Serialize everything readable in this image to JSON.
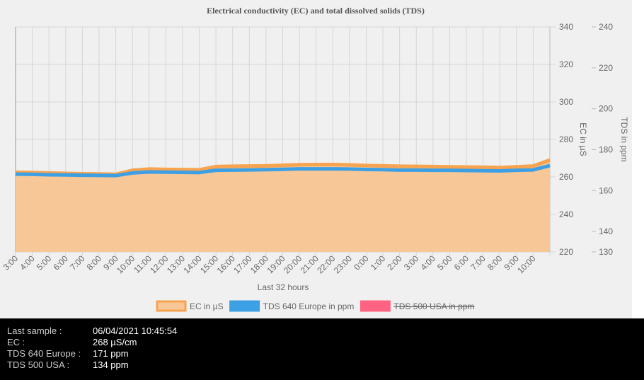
{
  "chart_data": {
    "type": "line",
    "title": "Electrical conductivity (EC) and total dissolved solids (TDS)",
    "x_label": "Last 32 hours",
    "y_label": "EC in µS",
    "y2_label": "TDS in ppm",
    "categories": [
      "3:00",
      "4:00",
      "5:00",
      "6:00",
      "7:00",
      "8:00",
      "9:00",
      "10:00",
      "11:00",
      "12:00",
      "13:00",
      "14:00",
      "15:00",
      "16:00",
      "17:00",
      "18:00",
      "19:00",
      "20:00",
      "21:00",
      "22:00",
      "23:00",
      "0:00",
      "1:00",
      "2:00",
      "3:00",
      "4:00",
      "5:00",
      "6:00",
      "7:00",
      "8:00",
      "9:00",
      "10:00",
      null
    ],
    "series": [
      {
        "name": "EC in µS",
        "color": "#f7a34f",
        "fill": "#f8c797",
        "values": [
          262.5,
          262.3,
          262.1,
          261.9,
          261.7,
          261.6,
          261.4,
          263.5,
          264.2,
          264,
          263.9,
          263.8,
          265.5,
          265.7,
          265.8,
          265.9,
          266.2,
          266.5,
          266.6,
          266.6,
          266.4,
          266.1,
          265.9,
          265.7,
          265.6,
          265.5,
          265.4,
          265.3,
          265.2,
          265,
          265.4,
          265.8,
          269
        ]
      },
      {
        "name": "TDS 640 Europe in ppm",
        "color": "#3ea0e4",
        "axis": "y2",
        "values": [
          168.0,
          167.9,
          167.7,
          167.6,
          167.5,
          167.4,
          167.3,
          168.6,
          169.1,
          169.0,
          168.9,
          168.8,
          169.9,
          170.0,
          170.1,
          170.2,
          170.4,
          170.6,
          170.6,
          170.6,
          170.5,
          170.3,
          170.2,
          170.0,
          170.0,
          169.9,
          169.9,
          169.8,
          169.7,
          169.6,
          169.9,
          170.1,
          172.2
        ]
      },
      {
        "name": "TDS 500 USA in ppm",
        "color": "#ff6384",
        "axis": "y2",
        "hidden": true
      }
    ],
    "ylim": [
      220,
      340
    ],
    "yticks": [
      220,
      240,
      260,
      280,
      300,
      320,
      340
    ],
    "y2lim": [
      130,
      240
    ],
    "y2ticks": [
      130,
      140,
      160,
      180,
      200,
      220,
      240
    ],
    "grid": true,
    "legend": "bottom"
  },
  "status": [
    [
      "Last sample :",
      "06/04/2021 10:45:54"
    ],
    [
      "EC :",
      "268 µS/cm"
    ],
    [
      "TDS 640 Europe :",
      "171 ppm"
    ],
    [
      "TDS 500 USA :",
      "134 ppm"
    ]
  ]
}
